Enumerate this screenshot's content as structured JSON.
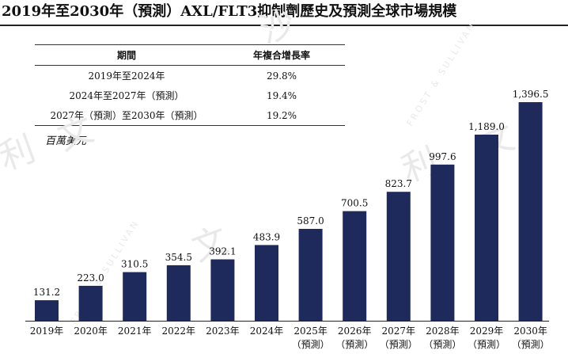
{
  "title": "2019年至2030年（預測）AXL/FLT3抑制劑歷史及預測全球市場規模",
  "cagr_table": {
    "headers": [
      "期間",
      "年複合增長率"
    ],
    "rows": [
      [
        "2019年至2024年",
        "29.8%"
      ],
      [
        "2024年至2027年（預測）",
        "19.4%"
      ],
      [
        "2027年（預測）至2030年（預測）",
        "19.2%"
      ]
    ]
  },
  "unit_label": "百萬美元",
  "colors": {
    "bar": "#1f2a5c"
  },
  "chart_data": {
    "type": "bar",
    "categories": [
      "2019年",
      "2020年",
      "2021年",
      "2022年",
      "2023年",
      "2024年",
      "2025年\n（預測）",
      "2026年\n（預測）",
      "2027年\n（預測）",
      "2028年\n（預測）",
      "2029年\n（預測）",
      "2030年\n（預測）"
    ],
    "values": [
      131.2,
      223.0,
      310.5,
      354.5,
      392.1,
      483.9,
      587.0,
      700.5,
      823.7,
      997.6,
      1189.0,
      1396.5
    ],
    "value_labels": [
      "131.2",
      "223.0",
      "310.5",
      "354.5",
      "392.1",
      "483.9",
      "587.0",
      "700.5",
      "823.7",
      "997.6",
      "1,189.0",
      "1,396.5"
    ],
    "ylim": [
      0,
      1396.5
    ],
    "grid": false,
    "legend": "none"
  }
}
